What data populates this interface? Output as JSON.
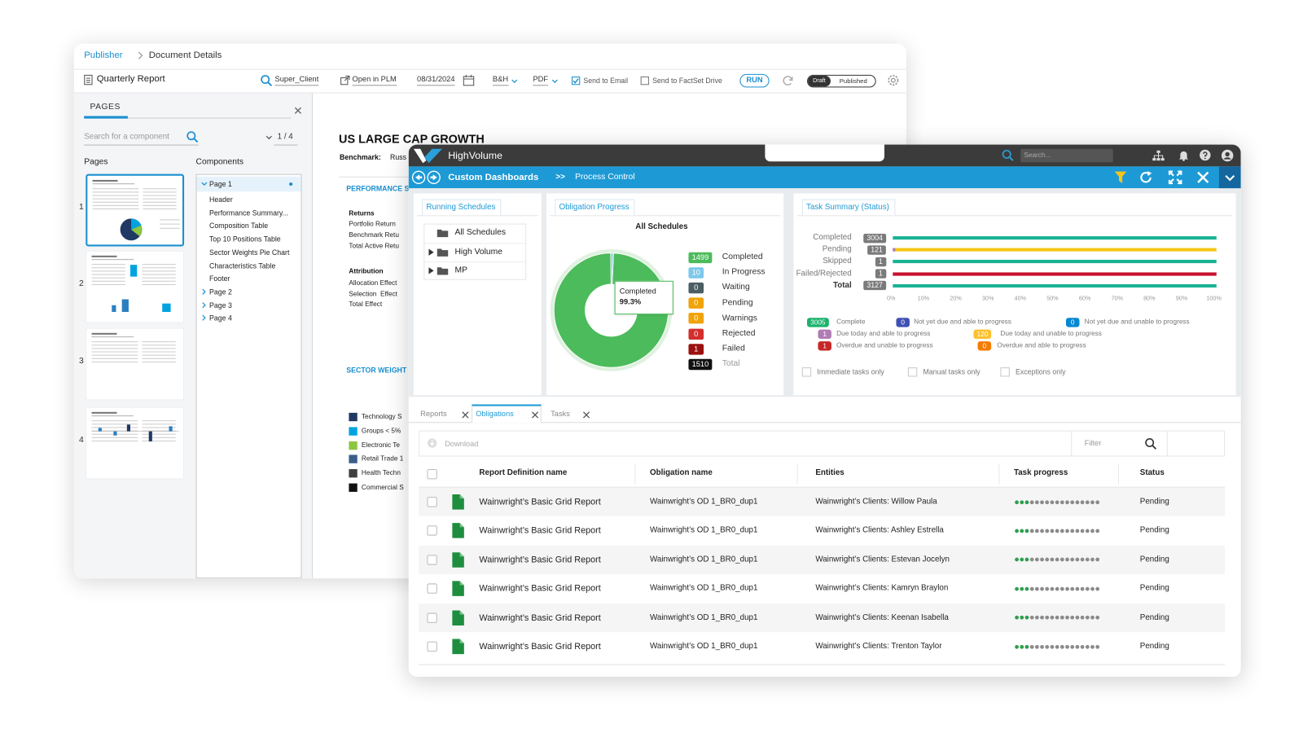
{
  "publisher": {
    "breadcrumb": {
      "root": "Publisher",
      "current": "Document Details"
    },
    "document_name": "Quarterly Report",
    "toolbar": {
      "client": "Super_Client",
      "open_in_plm": "Open in PLM",
      "date": "08/31/2024",
      "font": "B&H",
      "format": "PDF",
      "send_email": "Send to Email",
      "send_factset": "Send to FactSet Drive",
      "run": "RUN",
      "draft": "Draft",
      "published": "Published"
    },
    "sidebar": {
      "tab": "PAGES",
      "search_placeholder": "Search for a component",
      "pager": "1 / 4",
      "pages_heading": "Pages",
      "components_heading": "Components",
      "page_numbers": [
        "1",
        "2",
        "3",
        "4"
      ],
      "components": [
        {
          "label": "Page 1",
          "children": [
            "Header",
            "Performance Summary...",
            "Composition Table",
            "Top 10 Positions Table",
            "Sector Weights Pie Chart",
            "Characteristics Table",
            "Footer"
          ]
        },
        {
          "label": "Page 2"
        },
        {
          "label": "Page 3"
        },
        {
          "label": "Page 4"
        }
      ]
    },
    "document": {
      "title": "US LARGE CAP GROWTH",
      "benchmark_label": "Benchmark:",
      "benchmark_value": "Russ",
      "performance_heading": "PERFORMANCE S",
      "returns_heading": "Returns",
      "returns": [
        "Portfolio Return",
        "Benchmark Retu",
        "Total Active Retu"
      ],
      "attribution_heading": "Attribution",
      "attribution": [
        "Allocation Effect",
        "Selection  Effect",
        "Total Effect"
      ],
      "sector_heading": "SECTOR WEIGHT",
      "sector_legend": [
        {
          "label": "Technology S",
          "color": "#1f3864"
        },
        {
          "label": "Groups < 5%",
          "color": "#00a3e0"
        },
        {
          "label": "Electronic Te",
          "color": "#8dc63f"
        },
        {
          "label": "Retail Trade 1",
          "color": "#3a5f8a"
        },
        {
          "label": "Health Techn",
          "color": "#404040"
        },
        {
          "label": "Commercial S",
          "color": "#111111"
        }
      ]
    }
  },
  "highvolume": {
    "app_name": "HighVolume",
    "search_placeholder": "Search...",
    "nav": {
      "title": "Custom Dashboards",
      "separator": ">>",
      "current": "Process Control"
    },
    "running_schedules": {
      "title": "Running Schedules",
      "items": [
        "All Schedules",
        "High Volume",
        "MP"
      ]
    },
    "obligation_progress": {
      "title": "Obligation Progress",
      "chart_title": "All Schedules",
      "legend": [
        {
          "label": "Completed",
          "value": 1499,
          "color": "#4cbb5b"
        },
        {
          "label": "In Progress",
          "value": 10,
          "color": "#7cc8ea"
        },
        {
          "label": "Waiting",
          "value": 0,
          "color": "#4a5e63"
        },
        {
          "label": "Pending",
          "value": 0,
          "color": "#f0a30a"
        },
        {
          "label": "Warnings",
          "value": 0,
          "color": "#f0a30a"
        },
        {
          "label": "Rejected",
          "value": 0,
          "color": "#d32f2f"
        },
        {
          "label": "Failed",
          "value": 1,
          "color": "#9c1010"
        }
      ],
      "total": {
        "label": "Total",
        "value": 1510,
        "color": "#111111"
      },
      "tooltip": {
        "label": "Completed",
        "value": "99.3%"
      }
    },
    "task_summary": {
      "title": "Task Summary (Status)",
      "rows": [
        {
          "label": "Completed",
          "value": 3004,
          "color": "#1ab394"
        },
        {
          "label": "Pending",
          "value": 121,
          "color": "#f5c518"
        },
        {
          "label": "Skipped",
          "value": 1,
          "color": "#1ab394"
        },
        {
          "label": "Failed/Rejected",
          "value": 1,
          "color": "#c8102e"
        },
        {
          "label": "Total",
          "value": 3127,
          "color": "#1ab394"
        }
      ],
      "xticks": [
        "0%",
        "10%",
        "20%",
        "30%",
        "40%",
        "50%",
        "60%",
        "70%",
        "80%",
        "90%",
        "100%"
      ],
      "status_legend": [
        {
          "value": 3005,
          "label": "Complete",
          "color": "#1ab36c"
        },
        {
          "value": 0,
          "label": "Not yet due and able to progress",
          "color": "#3f51b5"
        },
        {
          "value": 0,
          "label": "Not yet due and unable to progress",
          "color": "#0288d1"
        },
        {
          "value": 1,
          "label": "Due today and able to progress",
          "color": "#b07cb5"
        },
        {
          "value": 120,
          "label": "Due today and unable to progress",
          "color": "#fbc02d"
        },
        {
          "value": 1,
          "label": "Overdue and unable to progress",
          "color": "#c62828"
        },
        {
          "value": 0,
          "label": "Overdue and able to progress",
          "color": "#f57c00"
        }
      ],
      "filters": [
        "Immediate tasks only",
        "Manual tasks only",
        "Exceptions only"
      ]
    },
    "tabs": [
      "Reports",
      "Obligations",
      "Tasks"
    ],
    "active_tab": 1,
    "download": "Download",
    "filter_placeholder": "Filter",
    "table": {
      "columns": [
        "Report Definition name",
        "Obligation name",
        "Entities",
        "Task progress",
        "Status"
      ],
      "rows": [
        {
          "report": "Wainwright’s Basic Grid Report",
          "obligation": "Wainwright’s OD 1_BR0_dup1",
          "entity": "Wainwright’s Clients: Willow Paula",
          "progress_done": 3,
          "progress_total": 17,
          "status": "Pending"
        },
        {
          "report": "Wainwright’s Basic Grid Report",
          "obligation": "Wainwright’s OD 1_BR0_dup1",
          "entity": "Wainwright’s Clients: Ashley Estrella",
          "progress_done": 3,
          "progress_total": 17,
          "status": "Pending"
        },
        {
          "report": "Wainwright’s Basic Grid Report",
          "obligation": "Wainwright’s OD 1_BR0_dup1",
          "entity": "Wainwright’s Clients: Estevan Jocelyn",
          "progress_done": 3,
          "progress_total": 17,
          "status": "Pending"
        },
        {
          "report": "Wainwright’s Basic Grid Report",
          "obligation": "Wainwright’s OD 1_BR0_dup1",
          "entity": "Wainwright’s Clients: Kamryn Braylon",
          "progress_done": 3,
          "progress_total": 17,
          "status": "Pending"
        },
        {
          "report": "Wainwright’s Basic Grid Report",
          "obligation": "Wainwright’s OD 1_BR0_dup1",
          "entity": "Wainwright’s Clients: Keenan Isabella",
          "progress_done": 3,
          "progress_total": 17,
          "status": "Pending"
        },
        {
          "report": "Wainwright’s Basic Grid Report",
          "obligation": "Wainwright’s OD 1_BR0_dup1",
          "entity": "Wainwright’s Clients: Trenton Taylor",
          "progress_done": 3,
          "progress_total": 17,
          "status": "Pending"
        }
      ]
    }
  }
}
